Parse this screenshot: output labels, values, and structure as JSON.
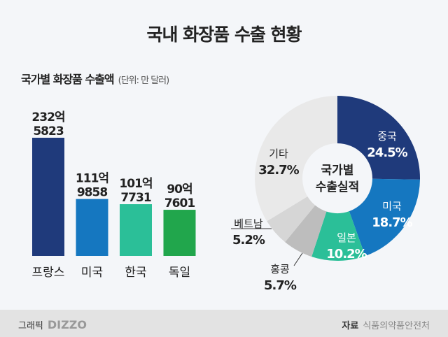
{
  "title": "국내 화장품 수출 현황",
  "chart_data": [
    {
      "type": "bar",
      "title": "국가별 화장품 수출액",
      "unit": "(단위: 만 달러)",
      "categories": [
        "프랑스",
        "미국",
        "한국",
        "독일"
      ],
      "values": [
        2325823,
        1119858,
        1017731,
        907601
      ],
      "labels": [
        [
          "232억",
          "5823"
        ],
        [
          "111억",
          "9858"
        ],
        [
          "101억",
          "7731"
        ],
        [
          "90억",
          "7601"
        ]
      ],
      "colors": [
        "#1f3a7b",
        "#1577c0",
        "#2bbf98",
        "#21a64c"
      ]
    },
    {
      "type": "pie",
      "title": "국가별 수출실적",
      "center_label": [
        "국가별",
        "수출실적"
      ],
      "categories": [
        "중국",
        "미국",
        "일본",
        "홍콩",
        "베트남",
        "기타"
      ],
      "values": [
        24.5,
        18.7,
        10.2,
        5.7,
        5.2,
        32.7
      ],
      "labels": [
        "24.5%",
        "18.7%",
        "10.2%",
        "5.7%",
        "5.2%",
        "32.7%"
      ],
      "colors": [
        "#1f3a7b",
        "#1577c0",
        "#2bbf98",
        "#bdbdbd",
        "#d6d6d6",
        "#e9e9e9"
      ]
    }
  ],
  "footer": {
    "credit_label": "그래픽",
    "credit_brand": "DIZZO",
    "source_label": "자료",
    "source": "식품의약품안전처"
  }
}
